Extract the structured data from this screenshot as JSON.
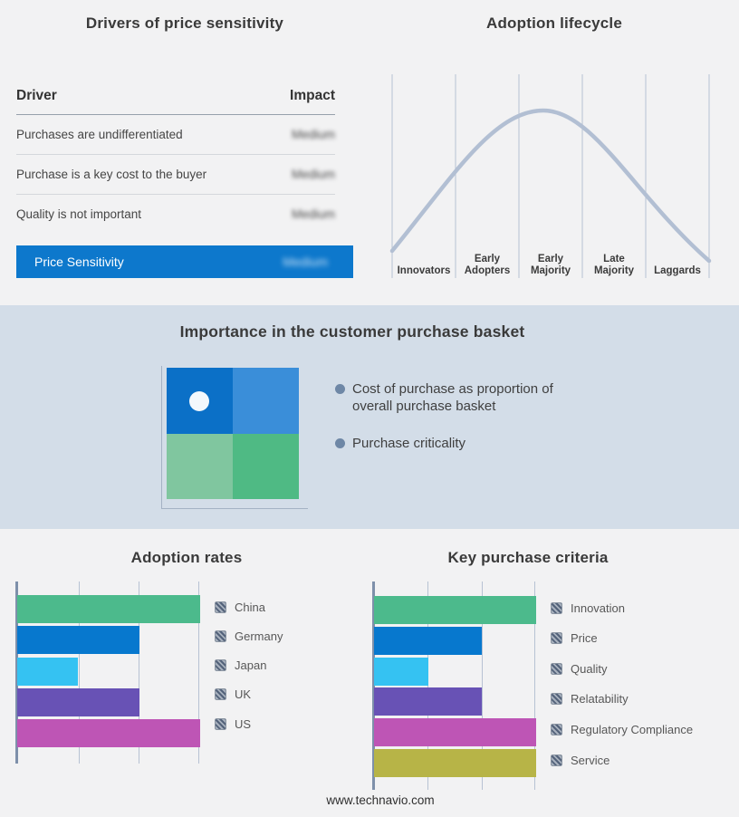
{
  "page": {
    "background": "#f2f2f3",
    "band_background": "#d3dde8",
    "footer_url": "www.technavio.com"
  },
  "basket_panel": {
    "title": "Importance in the customer purchase basket",
    "bullets": [
      "Cost of purchase as proportion of overall purchase basket",
      "Purchase criticality"
    ],
    "quadrant_colors": {
      "top_left": "#0b70c7",
      "top_right": "#3a8ed9",
      "bottom_left": "#80c69f",
      "bottom_right": "#4fba84"
    },
    "marker": "white dot in top-left quadrant",
    "bullet_dot_color": "#6e87a6"
  },
  "chart_data": [
    {
      "type": "table",
      "title": "Drivers of price sensitivity",
      "columns": [
        "Driver",
        "Impact"
      ],
      "rows": [
        [
          "Purchases are undifferentiated",
          "Medium"
        ],
        [
          "Purchase is a key cost to the buyer",
          "Medium"
        ],
        [
          "Quality is not important",
          "Medium"
        ]
      ],
      "highlight_row": [
        "Price Sensitivity",
        "Medium"
      ],
      "impact_style": "blurred",
      "accent": "#0d78cc"
    },
    {
      "type": "line",
      "title": "Adoption lifecycle",
      "stages": [
        "Innovators",
        "Early Adopters",
        "Early Majority",
        "Late Majority",
        "Laggards"
      ],
      "shape": "bell curve peaking over Early Majority",
      "curve_color": "#b2bfd3",
      "gridline_color": "#b7c2d3"
    },
    {
      "type": "bar",
      "orientation": "horizontal",
      "title": "Adoption rates",
      "categories": [
        "China",
        "Germany",
        "Japan",
        "UK",
        "US"
      ],
      "values": [
        3,
        2,
        1,
        2,
        3
      ],
      "colors": [
        "#4cba8c",
        "#0778ce",
        "#35c2f2",
        "#6852b5",
        "#be55b5"
      ],
      "xlim": [
        0,
        3
      ],
      "grid": true,
      "legend_position": "right"
    },
    {
      "type": "bar",
      "orientation": "horizontal",
      "title": "Key purchase criteria",
      "categories": [
        "Innovation",
        "Price",
        "Quality",
        "Relatability",
        "Regulatory Compliance",
        "Service"
      ],
      "values": [
        3,
        2,
        1,
        2,
        3,
        3
      ],
      "colors": [
        "#4cba8c",
        "#0778ce",
        "#35c2f2",
        "#6852b5",
        "#be55b5",
        "#b7b447"
      ],
      "xlim": [
        0,
        3
      ],
      "grid": true,
      "legend_position": "right"
    }
  ]
}
